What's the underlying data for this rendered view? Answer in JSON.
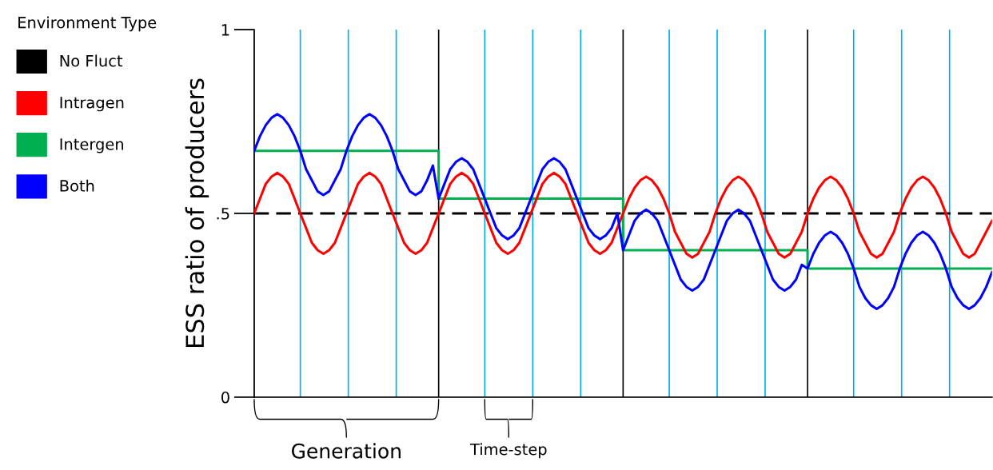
{
  "chart_data": {
    "type": "line",
    "ylabel": "ESS ratio of producers",
    "legend_title": "Environment Type",
    "legend": "left",
    "tick_labels": "y",
    "grid": false,
    "marker": "none",
    "ylim": [
      0,
      1
    ],
    "yticks": [
      0,
      {
        "value": 0.5,
        "label": ".5"
      },
      1
    ],
    "categories": [
      null,
      null,
      null,
      null,
      null,
      null,
      null,
      null,
      null,
      null,
      null,
      null,
      null,
      null,
      null,
      null,
      null,
      null,
      null,
      null,
      null,
      null,
      null,
      null,
      null,
      null,
      null,
      null,
      null,
      null,
      null,
      null,
      null,
      null,
      null,
      null,
      null,
      null,
      null,
      null,
      null,
      null,
      null,
      null,
      null,
      null,
      null,
      null,
      null,
      null,
      null,
      null,
      null,
      null,
      null,
      null,
      null,
      null,
      null,
      null,
      null,
      null,
      null,
      null,
      null,
      null,
      null,
      null,
      null,
      null,
      null,
      null,
      null,
      null,
      null,
      null,
      null,
      null,
      null,
      null,
      null,
      null,
      null,
      null,
      null,
      null,
      null,
      null,
      null,
      null,
      null,
      null,
      null,
      null,
      null,
      null,
      null,
      null,
      null,
      null,
      null,
      null,
      null,
      null,
      null,
      null,
      null,
      null,
      null,
      null,
      null,
      null,
      null,
      null,
      null,
      null,
      null,
      null,
      null,
      null,
      null,
      null,
      null,
      null,
      null,
      null,
      null,
      null,
      null
    ],
    "series": [
      {
        "name": "No Fluct",
        "color": "#000000",
        "line_style": "dashed",
        "values": [
          0.5,
          0.5,
          0.5,
          0.5,
          0.5,
          0.5,
          0.5,
          0.5,
          0.5,
          0.5,
          0.5,
          0.5,
          0.5,
          0.5,
          0.5,
          0.5,
          0.5,
          0.5,
          0.5,
          0.5,
          0.5,
          0.5,
          0.5,
          0.5,
          0.5,
          0.5,
          0.5,
          0.5,
          0.5,
          0.5,
          0.5,
          0.5,
          0.5,
          0.5,
          0.5,
          0.5,
          0.5,
          0.5,
          0.5,
          0.5,
          0.5,
          0.5,
          0.5,
          0.5,
          0.5,
          0.5,
          0.5,
          0.5,
          0.5,
          0.5,
          0.5,
          0.5,
          0.5,
          0.5,
          0.5,
          0.5,
          0.5,
          0.5,
          0.5,
          0.5,
          0.5,
          0.5,
          0.5,
          0.5,
          0.5,
          0.5,
          0.5,
          0.5,
          0.5,
          0.5,
          0.5,
          0.5,
          0.5,
          0.5,
          0.5,
          0.5,
          0.5,
          0.5,
          0.5,
          0.5,
          0.5,
          0.5,
          0.5,
          0.5,
          0.5,
          0.5,
          0.5,
          0.5,
          0.5,
          0.5,
          0.5,
          0.5,
          0.5,
          0.5,
          0.5,
          0.5,
          0.5,
          0.5,
          0.5,
          0.5,
          0.5,
          0.5,
          0.5,
          0.5,
          0.5,
          0.5,
          0.5,
          0.5,
          0.5,
          0.5,
          0.5,
          0.5,
          0.5,
          0.5,
          0.5,
          0.5,
          0.5,
          0.5,
          0.5,
          0.5,
          0.5,
          0.5,
          0.5,
          0.5,
          0.5,
          0.5,
          0.5,
          0.5,
          0.5
        ]
      },
      {
        "name": "Intragen",
        "color": "#ff0000",
        "values": [
          0.5,
          0.54,
          0.58,
          0.6,
          0.61,
          0.6,
          0.58,
          0.54,
          0.5,
          0.46,
          0.42,
          0.4,
          0.39,
          0.4,
          0.42,
          0.46,
          0.5,
          0.54,
          0.58,
          0.6,
          0.61,
          0.6,
          0.58,
          0.54,
          0.5,
          0.46,
          0.42,
          0.4,
          0.39,
          0.4,
          0.42,
          0.46,
          0.5,
          0.54,
          0.58,
          0.6,
          0.61,
          0.6,
          0.58,
          0.54,
          0.5,
          0.46,
          0.42,
          0.4,
          0.39,
          0.4,
          0.42,
          0.46,
          0.5,
          0.54,
          0.58,
          0.6,
          0.61,
          0.6,
          0.58,
          0.54,
          0.5,
          0.46,
          0.42,
          0.4,
          0.39,
          0.4,
          0.42,
          0.46,
          0.5,
          0.54,
          0.57,
          0.59,
          0.6,
          0.59,
          0.57,
          0.54,
          0.5,
          0.45,
          0.42,
          0.39,
          0.38,
          0.39,
          0.42,
          0.45,
          0.5,
          0.54,
          0.57,
          0.59,
          0.6,
          0.59,
          0.57,
          0.54,
          0.5,
          0.45,
          0.42,
          0.39,
          0.38,
          0.39,
          0.42,
          0.45,
          0.5,
          0.54,
          0.57,
          0.59,
          0.6,
          0.59,
          0.57,
          0.54,
          0.5,
          0.45,
          0.42,
          0.39,
          0.38,
          0.39,
          0.42,
          0.45,
          0.5,
          0.54,
          0.57,
          0.59,
          0.6,
          0.59,
          0.57,
          0.54,
          0.5,
          0.45,
          0.42,
          0.39,
          0.38,
          0.39,
          0.42,
          0.45,
          0.48
        ]
      },
      {
        "name": "Intergen",
        "color": "#00b050",
        "type": "step",
        "values": [
          0.67,
          0.67,
          0.67,
          0.67,
          0.67,
          0.67,
          0.67,
          0.67,
          0.67,
          0.67,
          0.67,
          0.67,
          0.67,
          0.67,
          0.67,
          0.67,
          0.67,
          0.67,
          0.67,
          0.67,
          0.67,
          0.67,
          0.67,
          0.67,
          0.67,
          0.67,
          0.67,
          0.67,
          0.67,
          0.67,
          0.67,
          0.67,
          0.54,
          0.54,
          0.54,
          0.54,
          0.54,
          0.54,
          0.54,
          0.54,
          0.54,
          0.54,
          0.54,
          0.54,
          0.54,
          0.54,
          0.54,
          0.54,
          0.54,
          0.54,
          0.54,
          0.54,
          0.54,
          0.54,
          0.54,
          0.54,
          0.54,
          0.54,
          0.54,
          0.54,
          0.54,
          0.54,
          0.54,
          0.54,
          0.4,
          0.4,
          0.4,
          0.4,
          0.4,
          0.4,
          0.4,
          0.4,
          0.4,
          0.4,
          0.4,
          0.4,
          0.4,
          0.4,
          0.4,
          0.4,
          0.4,
          0.4,
          0.4,
          0.4,
          0.4,
          0.4,
          0.4,
          0.4,
          0.4,
          0.4,
          0.4,
          0.4,
          0.4,
          0.4,
          0.4,
          0.4,
          0.35,
          0.35,
          0.35,
          0.35,
          0.35,
          0.35,
          0.35,
          0.35,
          0.35,
          0.35,
          0.35,
          0.35,
          0.35,
          0.35,
          0.35,
          0.35,
          0.35,
          0.35,
          0.35,
          0.35,
          0.35,
          0.35,
          0.35,
          0.35,
          0.35,
          0.35,
          0.35,
          0.35,
          0.35,
          0.35,
          0.35,
          0.35,
          0.35
        ]
      },
      {
        "name": "Both",
        "color": "#0000ff",
        "values": [
          0.67,
          0.71,
          0.74,
          0.76,
          0.77,
          0.76,
          0.74,
          0.71,
          0.67,
          0.62,
          0.59,
          0.56,
          0.55,
          0.56,
          0.59,
          0.62,
          0.67,
          0.71,
          0.74,
          0.76,
          0.77,
          0.76,
          0.74,
          0.71,
          0.67,
          0.62,
          0.59,
          0.56,
          0.55,
          0.56,
          0.59,
          0.63,
          0.54,
          0.58,
          0.62,
          0.64,
          0.65,
          0.64,
          0.62,
          0.58,
          0.54,
          0.5,
          0.46,
          0.44,
          0.43,
          0.44,
          0.46,
          0.5,
          0.54,
          0.58,
          0.62,
          0.64,
          0.65,
          0.64,
          0.62,
          0.58,
          0.54,
          0.5,
          0.46,
          0.44,
          0.43,
          0.44,
          0.46,
          0.5,
          0.4,
          0.44,
          0.48,
          0.5,
          0.51,
          0.5,
          0.48,
          0.44,
          0.4,
          0.36,
          0.32,
          0.3,
          0.29,
          0.3,
          0.32,
          0.36,
          0.4,
          0.44,
          0.48,
          0.5,
          0.51,
          0.5,
          0.48,
          0.44,
          0.4,
          0.36,
          0.32,
          0.3,
          0.29,
          0.3,
          0.32,
          0.36,
          0.35,
          0.39,
          0.42,
          0.44,
          0.45,
          0.44,
          0.42,
          0.39,
          0.35,
          0.3,
          0.27,
          0.25,
          0.24,
          0.25,
          0.27,
          0.3,
          0.35,
          0.39,
          0.42,
          0.44,
          0.45,
          0.44,
          0.42,
          0.39,
          0.35,
          0.3,
          0.27,
          0.25,
          0.24,
          0.25,
          0.27,
          0.3,
          0.34
        ]
      }
    ],
    "annotations": [
      "Generation",
      "Time-step"
    ]
  }
}
